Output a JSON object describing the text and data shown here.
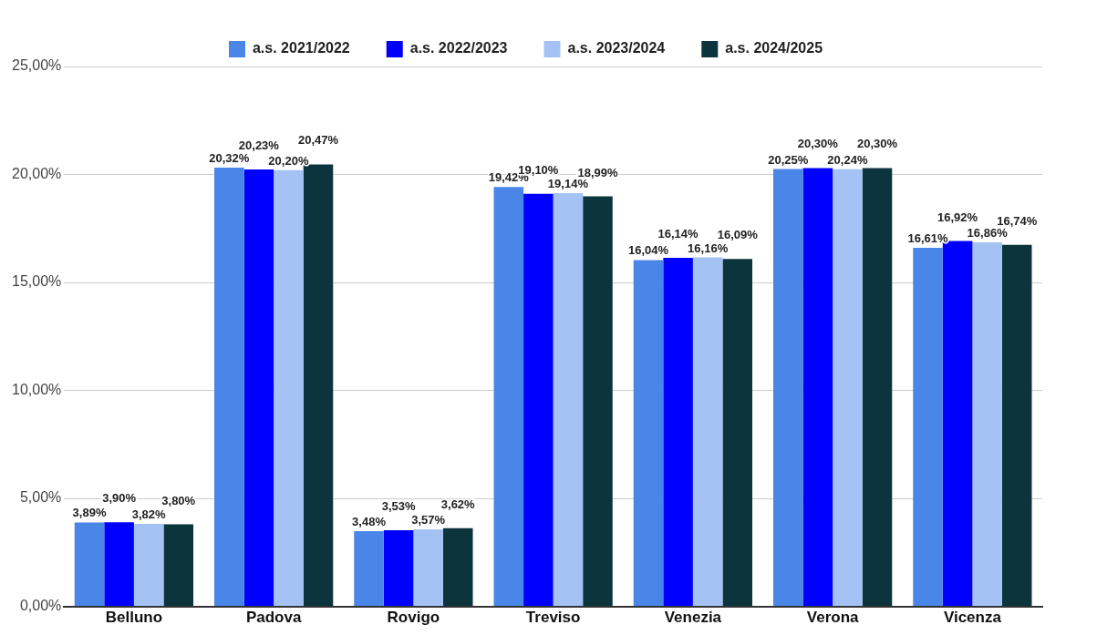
{
  "chart_data": {
    "type": "bar",
    "categories": [
      "Belluno",
      "Padova",
      "Rovigo",
      "Treviso",
      "Venezia",
      "Verona",
      "Vicenza"
    ],
    "series": [
      {
        "name": "a.s. 2021/2022",
        "color": "#4a86e8",
        "values": [
          3.89,
          20.32,
          3.48,
          19.42,
          16.04,
          20.25,
          16.61
        ],
        "value_labels": [
          "3,89%",
          "20,32%",
          "3,48%",
          "19,42%",
          "16,04%",
          "20,25%",
          "16,61%"
        ]
      },
      {
        "name": "a.s. 2022/2023",
        "color": "#0000ff",
        "values": [
          3.9,
          20.23,
          3.53,
          19.1,
          16.14,
          20.3,
          16.92
        ],
        "value_labels": [
          "3,90%",
          "20,23%",
          "3,53%",
          "19,10%",
          "16,14%",
          "20,30%",
          "16,92%"
        ]
      },
      {
        "name": "a.s. 2023/2024",
        "color": "#a4c2f4",
        "values": [
          3.82,
          20.2,
          3.57,
          19.14,
          16.16,
          20.24,
          16.86
        ],
        "value_labels": [
          "3,82%",
          "20,20%",
          "3,57%",
          "19,14%",
          "16,16%",
          "20,24%",
          "16,86%"
        ]
      },
      {
        "name": "a.s. 2024/2025",
        "color": "#0c343d",
        "values": [
          3.8,
          20.47,
          3.62,
          18.99,
          16.09,
          20.3,
          16.74
        ],
        "value_labels": [
          "3,80%",
          "20,47%",
          "3,62%",
          "18,99%",
          "16,09%",
          "20,30%",
          "16,74%"
        ]
      }
    ],
    "ylim": [
      0,
      25
    ],
    "yticks": [
      {
        "value": 0,
        "label": "0,00%"
      },
      {
        "value": 5,
        "label": "5,00%"
      },
      {
        "value": 10,
        "label": "10,00%"
      },
      {
        "value": 15,
        "label": "15,00%"
      },
      {
        "value": 20,
        "label": "20,00%"
      },
      {
        "value": 25,
        "label": "25,00%"
      }
    ],
    "grid": "y",
    "legend": "top"
  }
}
